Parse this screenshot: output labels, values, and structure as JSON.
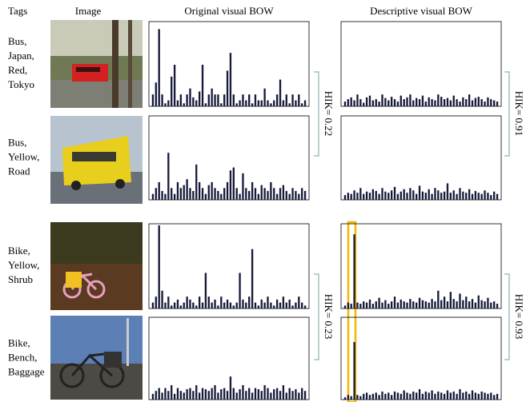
{
  "headers": {
    "tags": "Tags",
    "image": "Image",
    "original": "Original visual BOW",
    "descriptive": "Descriptive visual BOW"
  },
  "highlight_color": "#e02020",
  "rows": [
    {
      "tags": [
        "Bus,",
        "Japan,",
        "Red,",
        "Tokyo"
      ],
      "original": {
        "ylim": [
          0,
          0.14
        ],
        "values": [
          0.02,
          0.04,
          0.13,
          0.02,
          0.005,
          0.01,
          0.05,
          0.07,
          0.01,
          0.02,
          0.005,
          0.02,
          0.03,
          0.015,
          0.01,
          0.025,
          0.07,
          0.005,
          0.02,
          0.03,
          0.02,
          0.02,
          0.005,
          0.02,
          0.06,
          0.09,
          0.02,
          0.005,
          0.01,
          0.02,
          0.01,
          0.02,
          0.005,
          0.02,
          0.01,
          0.01,
          0.03,
          0.01,
          0.005,
          0.01,
          0.02,
          0.045,
          0.01,
          0.02,
          0.005,
          0.02,
          0.01,
          0.02,
          0.005,
          0.01
        ]
      },
      "descriptive": {
        "ylim": [
          0,
          0.14
        ],
        "values": [
          0.008,
          0.012,
          0.015,
          0.01,
          0.02,
          0.012,
          0.006,
          0.015,
          0.018,
          0.01,
          0.012,
          0.008,
          0.02,
          0.014,
          0.01,
          0.016,
          0.012,
          0.008,
          0.018,
          0.012,
          0.015,
          0.02,
          0.01,
          0.014,
          0.012,
          0.018,
          0.008,
          0.015,
          0.012,
          0.01,
          0.02,
          0.016,
          0.012,
          0.014,
          0.01,
          0.018,
          0.012,
          0.008,
          0.015,
          0.012,
          0.02,
          0.01,
          0.014,
          0.016,
          0.012,
          0.008,
          0.015,
          0.012,
          0.01,
          0.008
        ]
      }
    },
    {
      "tags": [
        "Bus,",
        "Yellow,",
        "Road"
      ],
      "original": {
        "ylim": [
          0,
          0.14
        ],
        "values": [
          0.01,
          0.02,
          0.03,
          0.015,
          0.01,
          0.08,
          0.02,
          0.01,
          0.03,
          0.02,
          0.025,
          0.035,
          0.02,
          0.015,
          0.06,
          0.03,
          0.02,
          0.01,
          0.025,
          0.03,
          0.02,
          0.015,
          0.01,
          0.02,
          0.03,
          0.05,
          0.055,
          0.02,
          0.01,
          0.045,
          0.02,
          0.015,
          0.03,
          0.02,
          0.01,
          0.025,
          0.02,
          0.015,
          0.03,
          0.02,
          0.01,
          0.02,
          0.025,
          0.015,
          0.01,
          0.02,
          0.015,
          0.01,
          0.02,
          0.015
        ]
      },
      "descriptive": {
        "ylim": [
          0,
          0.14
        ],
        "values": [
          0.008,
          0.012,
          0.01,
          0.016,
          0.012,
          0.02,
          0.01,
          0.014,
          0.012,
          0.018,
          0.015,
          0.01,
          0.02,
          0.014,
          0.012,
          0.016,
          0.022,
          0.01,
          0.014,
          0.018,
          0.012,
          0.02,
          0.016,
          0.01,
          0.024,
          0.014,
          0.012,
          0.018,
          0.01,
          0.02,
          0.016,
          0.012,
          0.014,
          0.028,
          0.012,
          0.016,
          0.01,
          0.02,
          0.014,
          0.012,
          0.018,
          0.01,
          0.015,
          0.012,
          0.01,
          0.016,
          0.012,
          0.008,
          0.014,
          0.01
        ]
      }
    },
    {
      "tags": [
        "Bike,",
        "Yellow,",
        "Shrub"
      ],
      "original": {
        "ylim": [
          0,
          0.14
        ],
        "values": [
          0.01,
          0.02,
          0.14,
          0.03,
          0.01,
          0.02,
          0.005,
          0.01,
          0.015,
          0.005,
          0.01,
          0.02,
          0.015,
          0.01,
          0.005,
          0.02,
          0.01,
          0.06,
          0.02,
          0.01,
          0.015,
          0.005,
          0.02,
          0.01,
          0.015,
          0.01,
          0.005,
          0.01,
          0.06,
          0.015,
          0.01,
          0.02,
          0.1,
          0.01,
          0.005,
          0.015,
          0.01,
          0.02,
          0.01,
          0.005,
          0.015,
          0.01,
          0.02,
          0.01,
          0.015,
          0.005,
          0.01,
          0.02,
          0.01,
          0.005
        ]
      },
      "descriptive": {
        "ylim": [
          0,
          0.14
        ],
        "values": [
          0.005,
          0.01,
          0.008,
          0.125,
          0.01,
          0.008,
          0.012,
          0.01,
          0.015,
          0.008,
          0.012,
          0.018,
          0.01,
          0.014,
          0.008,
          0.012,
          0.02,
          0.01,
          0.015,
          0.012,
          0.01,
          0.016,
          0.012,
          0.01,
          0.018,
          0.014,
          0.012,
          0.01,
          0.016,
          0.012,
          0.03,
          0.014,
          0.02,
          0.012,
          0.028,
          0.016,
          0.012,
          0.025,
          0.014,
          0.02,
          0.012,
          0.016,
          0.01,
          0.022,
          0.014,
          0.012,
          0.018,
          0.01,
          0.012,
          0.008
        ]
      }
    },
    {
      "tags": [
        "Bike,",
        "Bench,",
        "Baggage"
      ],
      "original": {
        "ylim": [
          0,
          0.14
        ],
        "values": [
          0.01,
          0.015,
          0.02,
          0.012,
          0.02,
          0.015,
          0.025,
          0.01,
          0.02,
          0.015,
          0.012,
          0.018,
          0.02,
          0.015,
          0.025,
          0.012,
          0.02,
          0.018,
          0.015,
          0.02,
          0.025,
          0.012,
          0.018,
          0.02,
          0.015,
          0.04,
          0.02,
          0.012,
          0.018,
          0.025,
          0.015,
          0.02,
          0.012,
          0.02,
          0.018,
          0.015,
          0.025,
          0.02,
          0.012,
          0.018,
          0.02,
          0.015,
          0.025,
          0.012,
          0.02,
          0.015,
          0.018,
          0.012,
          0.02,
          0.015
        ]
      },
      "descriptive": {
        "ylim": [
          0,
          0.14
        ],
        "values": [
          0.004,
          0.008,
          0.006,
          0.1,
          0.008,
          0.006,
          0.01,
          0.012,
          0.008,
          0.01,
          0.012,
          0.008,
          0.014,
          0.01,
          0.012,
          0.008,
          0.014,
          0.012,
          0.01,
          0.016,
          0.012,
          0.01,
          0.014,
          0.012,
          0.018,
          0.01,
          0.014,
          0.012,
          0.016,
          0.01,
          0.014,
          0.012,
          0.01,
          0.016,
          0.012,
          0.014,
          0.01,
          0.018,
          0.012,
          0.014,
          0.01,
          0.016,
          0.012,
          0.01,
          0.014,
          0.012,
          0.01,
          0.012,
          0.008,
          0.01
        ]
      }
    }
  ],
  "pairs": [
    {
      "original_hik": "HIK= 0.22",
      "descriptive_hik": "HIK= 0.91"
    },
    {
      "original_hik": "HIK= 0.23",
      "descriptive_hik": "HIK= 0.93"
    }
  ]
}
